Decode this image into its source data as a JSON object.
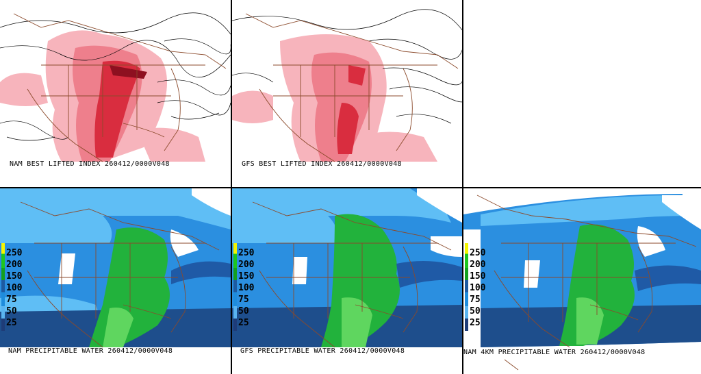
{
  "panels": {
    "nam_li": {
      "caption": "NAM BEST LIFTED INDEX 260412/0000V048"
    },
    "gfs_li": {
      "caption": "GFS BEST LIFTED INDEX 260412/0000V048"
    },
    "nam_pw": {
      "caption": "NAM PRECIPITABLE WATER 260412/0000V048"
    },
    "gfs_pw": {
      "caption": "GFS PRECIPITABLE WATER 260412/0000V048"
    },
    "nam4km_pw": {
      "caption": "NAM 4KM PRECIPITABLE WATER 260412/0000V048"
    }
  },
  "pw_legend": {
    "ticks": [
      "250",
      "200",
      "150",
      "100",
      "75",
      "50",
      "25"
    ],
    "colors": [
      "#f5f500",
      "#1ec61e",
      "#14a01e",
      "#1e5aa0",
      "#1e8cdc",
      "#5ab4f0",
      "#1e3c78"
    ]
  },
  "colors": {
    "li_light": "#f7b4bc",
    "li_mid": "#ee7f8c",
    "li_dark": "#d92d3f",
    "pw_ocean": "#1e4e8c",
    "pw_light": "#5fbef5",
    "pw_mid": "#2b8fe0",
    "pw_dark": "#1f5aa6",
    "pw_green": "#22b23c",
    "pw_lightgreen": "#5fd65f",
    "borders": "#8b4a2b"
  }
}
